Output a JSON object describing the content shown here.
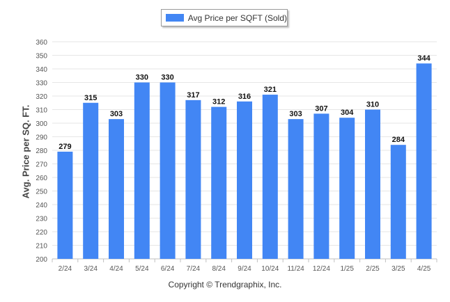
{
  "chart_data": {
    "type": "bar",
    "categories": [
      "2/24",
      "3/24",
      "4/24",
      "5/24",
      "6/24",
      "7/24",
      "8/24",
      "9/24",
      "10/24",
      "11/24",
      "12/24",
      "1/25",
      "2/25",
      "3/25",
      "4/25"
    ],
    "series": [
      {
        "name": "Avg Price per SQFT (Sold)",
        "values": [
          279,
          315,
          303,
          330,
          330,
          317,
          312,
          316,
          321,
          303,
          307,
          304,
          310,
          284,
          344
        ]
      }
    ],
    "ylabel": "Avg. Price per SQ. FT.",
    "xlabel": "",
    "ylim": [
      200,
      360
    ],
    "yticks": [
      200,
      210,
      220,
      230,
      240,
      250,
      260,
      270,
      280,
      290,
      300,
      310,
      320,
      330,
      340,
      350,
      360
    ],
    "grid": true,
    "legend_position": "top-center",
    "bar_color": "#4286f4",
    "footer": "Copyright © Trendgraphix, Inc."
  }
}
